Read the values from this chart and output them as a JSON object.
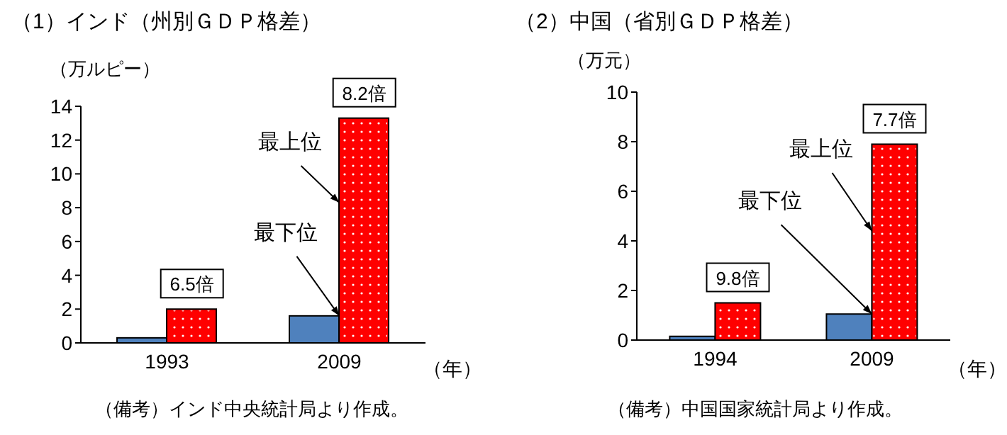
{
  "chart_data": [
    {
      "type": "bar",
      "title": "（1）インド（州別ＧＤＰ格差）",
      "ylabel": "（万ルピー）",
      "xlabel": "（年）",
      "categories": [
        "1993",
        "2009"
      ],
      "ylim": [
        0,
        14
      ],
      "yticks": [
        0,
        2,
        4,
        6,
        8,
        10,
        12,
        14
      ],
      "grid": false,
      "legend": false,
      "series": [
        {
          "color": "#4f81bd",
          "values": [
            0.3,
            1.6
          ]
        },
        {
          "color": "#ff0000",
          "values": [
            2.0,
            13.3
          ]
        }
      ],
      "annotations": [
        {
          "text": "6.5倍",
          "x": "1993",
          "y": 2.0
        },
        {
          "text": "8.2倍",
          "x": "2009",
          "y": 13.3
        },
        {
          "text": "最上位",
          "x": "2009",
          "y": 8.3
        },
        {
          "text": "最下位",
          "x": "2009",
          "y": 1.6
        },
        "（備考）インド中央統計局より作成。"
      ]
    },
    {
      "type": "bar",
      "title": "（2）中国（省別ＧＤＰ格差）",
      "ylabel": "（万元）",
      "xlabel": "（年）",
      "categories": [
        "1994",
        "2009"
      ],
      "ylim": [
        0,
        10
      ],
      "yticks": [
        0,
        2,
        4,
        6,
        8,
        10
      ],
      "grid": false,
      "legend": false,
      "series": [
        {
          "color": "#4f81bd",
          "values": [
            0.15,
            1.05
          ]
        },
        {
          "color": "#ff0000",
          "values": [
            1.5,
            7.9
          ]
        }
      ],
      "annotations": [
        {
          "text": "9.8倍",
          "x": "1994",
          "y": 1.5
        },
        {
          "text": "7.7倍",
          "x": "2009",
          "y": 7.9
        },
        {
          "text": "最上位",
          "x": "2009",
          "y": 4.4
        },
        {
          "text": "最下位",
          "x": "2009",
          "y": 1.05
        },
        "（備考）中国国家統計局より作成。"
      ]
    }
  ]
}
